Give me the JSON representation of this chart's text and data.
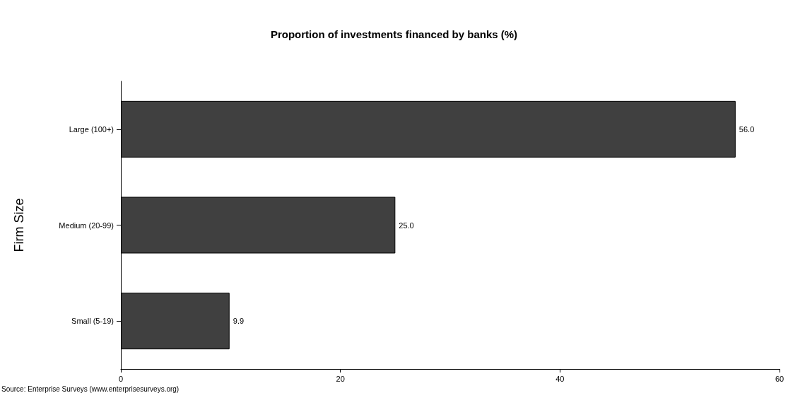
{
  "chart_data": {
    "type": "bar",
    "orientation": "horizontal",
    "title": "Proportion of investments financed by banks (%)",
    "ylabel": "Firm Size",
    "categories": [
      "Large (100+)",
      "Medium (20-99)",
      "Small (5-19)"
    ],
    "values": [
      56.0,
      25.0,
      9.9
    ],
    "value_labels": [
      "56.0",
      "25.0",
      "9.9"
    ],
    "color": "#404040",
    "xlim": [
      0,
      60
    ],
    "xticks": [
      0,
      20,
      40,
      60
    ],
    "grid": false,
    "annotations": [
      "Source: Enterprise Surveys (www.enterprisesurveys.org)"
    ]
  }
}
